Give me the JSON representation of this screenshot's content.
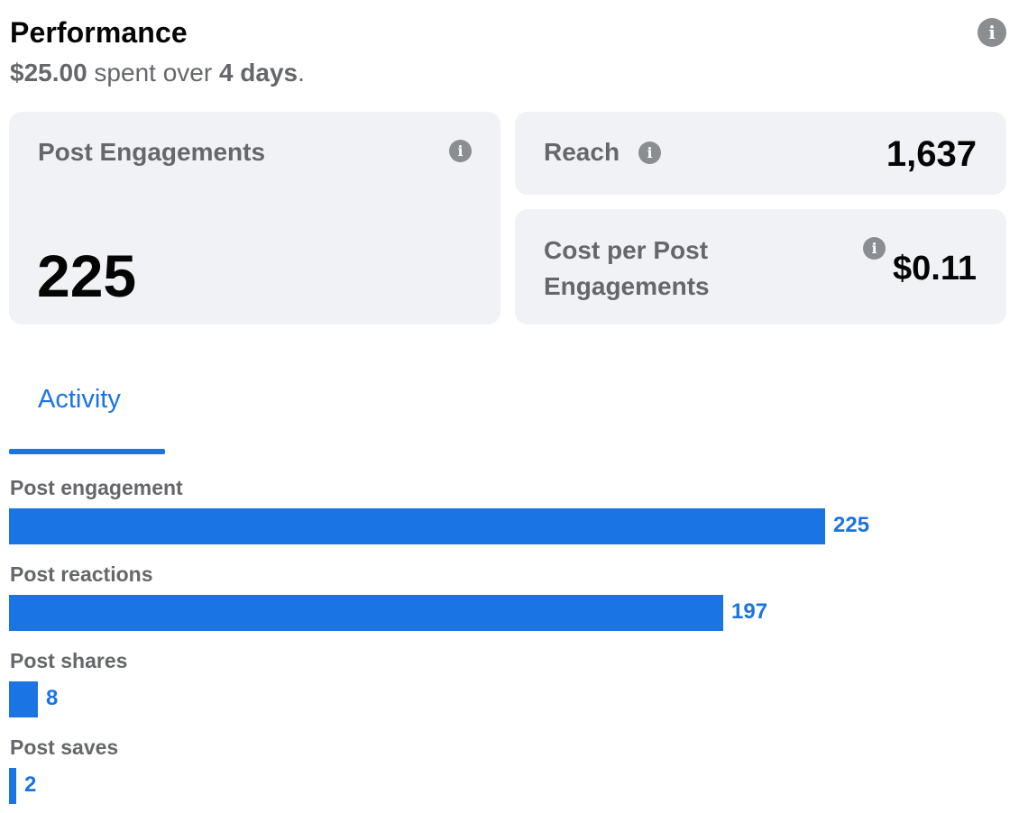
{
  "header": {
    "title": "Performance",
    "amount": "$25.00",
    "spent_text": " spent over ",
    "days": "4 days",
    "period": "."
  },
  "cards": {
    "engagements": {
      "label": "Post Engagements",
      "value": "225"
    },
    "reach": {
      "label": "Reach",
      "value": "1,637"
    },
    "cost": {
      "label": "Cost per Post Engagements",
      "value": "$0.11"
    }
  },
  "tabs": [
    {
      "label": "Activity",
      "active": true
    }
  ],
  "chart_data": {
    "type": "bar",
    "orientation": "horizontal",
    "categories": [
      "Post engagement",
      "Post reactions",
      "Post shares",
      "Post saves"
    ],
    "values": [
      225,
      197,
      8,
      2
    ],
    "labels": [
      "225",
      "197",
      "8",
      "2"
    ],
    "xlim": [
      0,
      276
    ],
    "color": "#1b74e4"
  },
  "icons": {
    "info": "info-icon"
  },
  "colors": {
    "accent": "#1b74e4",
    "card_bg": "#f0f2f5",
    "muted_text": "#65676b"
  }
}
